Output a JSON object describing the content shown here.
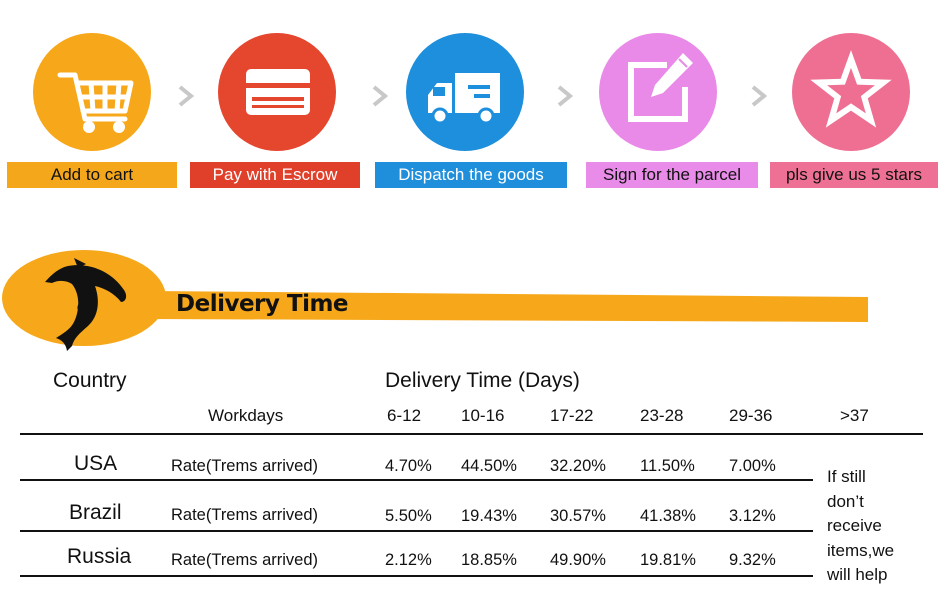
{
  "steps": [
    {
      "label": "Add to cart",
      "icon": "cart-icon",
      "circle_color": "#f6a81a",
      "label_bg": "#f5a71b",
      "label_color": "#111111"
    },
    {
      "label": "Pay with Escrow",
      "icon": "credit-card-icon",
      "circle_color": "#e5462e",
      "label_bg": "#e0402a",
      "label_color": "#ffffff"
    },
    {
      "label": "Dispatch the goods",
      "icon": "truck-icon",
      "circle_color": "#1d8fdc",
      "label_bg": "#1f8fdb",
      "label_color": "#ffffff"
    },
    {
      "label": "Sign for the parcel",
      "icon": "edit-icon",
      "circle_color": "#e98ae9",
      "label_bg": "#e98be9",
      "label_color": "#111111"
    },
    {
      "label": "pls give us 5 stars",
      "icon": "star-icon",
      "circle_color": "#ef6f93",
      "label_bg": "#ee7094",
      "label_color": "#111111"
    }
  ],
  "banner": {
    "title": "Delivery Time",
    "icon": "dolphin-icon",
    "color": "#f6a81a"
  },
  "table": {
    "country_header": "Country",
    "delivery_header": "Delivery Time (Days)",
    "workdays_label": "Workdays",
    "ranges": [
      "6-12",
      "10-16",
      "17-22",
      "23-28",
      "29-36",
      ">37"
    ],
    "rows": [
      {
        "country": "USA",
        "rate_label": "Rate(Trems arrived)",
        "values": [
          "4.70%",
          "44.50%",
          "32.20%",
          "11.50%",
          "7.00%"
        ]
      },
      {
        "country": "Brazil",
        "rate_label": "Rate(Trems arrived)",
        "values": [
          "5.50%",
          "19.43%",
          "30.57%",
          "41.38%",
          "3.12%"
        ]
      },
      {
        "country": "Russia",
        "rate_label": "Rate(Trems arrived)",
        "values": [
          "2.12%",
          "18.85%",
          "49.90%",
          "19.81%",
          "9.32%"
        ]
      }
    ],
    "note_lines": [
      "If still",
      "don’t",
      "receive",
      "items,we",
      "will help"
    ]
  }
}
